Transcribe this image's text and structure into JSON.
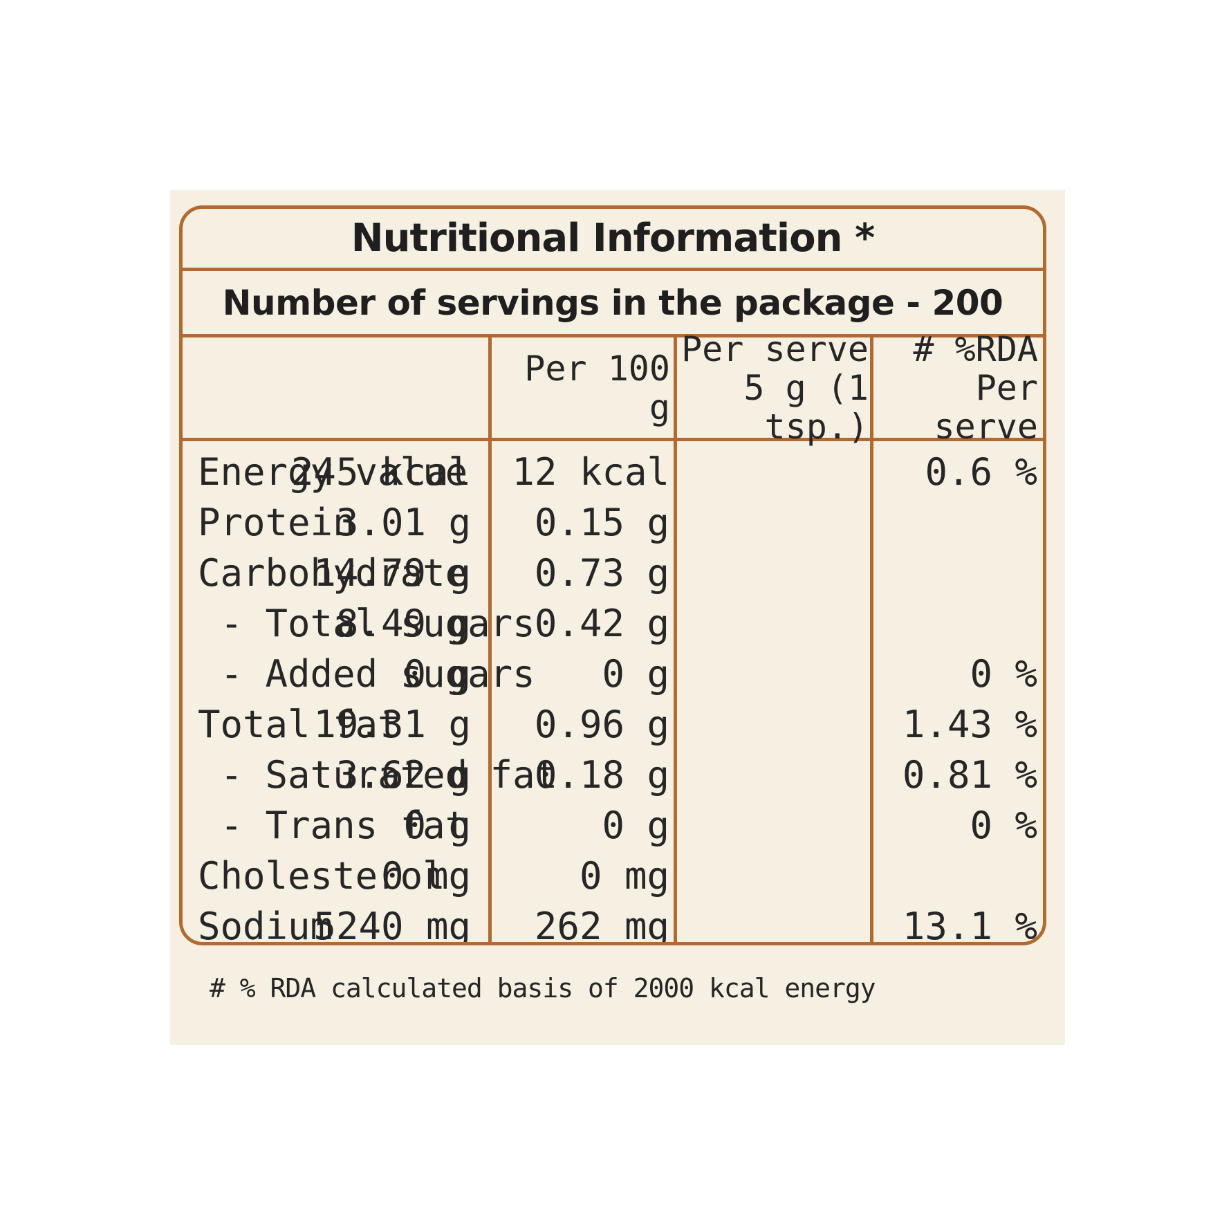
{
  "title": "Nutritional Information *",
  "servings": "Number of servings in the package - 200",
  "columns": {
    "per100": "Per 100 g",
    "perServeLine1": "Per serve",
    "perServeLine2": "5 g (1 tsp.)",
    "rdaLine1": "# %RDA",
    "rdaLine2": "Per serve"
  },
  "rows": [
    {
      "label": "Energy value",
      "per100": "245 kcal",
      "perServe": "12 kcal",
      "rda": "0.6 %"
    },
    {
      "label": "Protein",
      "per100": "3.01 g",
      "perServe": "0.15 g",
      "rda": ""
    },
    {
      "label": "Carbohydrate",
      "per100": "14.79 g",
      "perServe": "0.73 g",
      "rda": ""
    },
    {
      "label": " - Total sugars",
      "per100": "8.49 g",
      "perServe": "0.42 g",
      "rda": ""
    },
    {
      "label": " - Added sugars",
      "per100": "0 g",
      "perServe": "0 g",
      "rda": "0 %"
    },
    {
      "label": "Total fat",
      "per100": "19.31 g",
      "perServe": "0.96 g",
      "rda": "1.43 %"
    },
    {
      "label": " - Saturated fat",
      "per100": "3.62 g",
      "perServe": "0.18 g",
      "rda": "0.81 %"
    },
    {
      "label": " - Trans fat",
      "per100": "0 g",
      "perServe": "0 g",
      "rda": "0 %"
    },
    {
      "label": "Cholesterol",
      "per100": "0 mg",
      "perServe": "0 mg",
      "rda": ""
    },
    {
      "label": "Sodium",
      "per100": "5240 mg",
      "perServe": "262 mg",
      "rda": "13.1 %"
    }
  ],
  "footnote": "# % RDA calculated basis of 2000 kcal energy",
  "colors": {
    "border": "#b06a32",
    "background": "#f6f0e3",
    "text": "#262626"
  }
}
